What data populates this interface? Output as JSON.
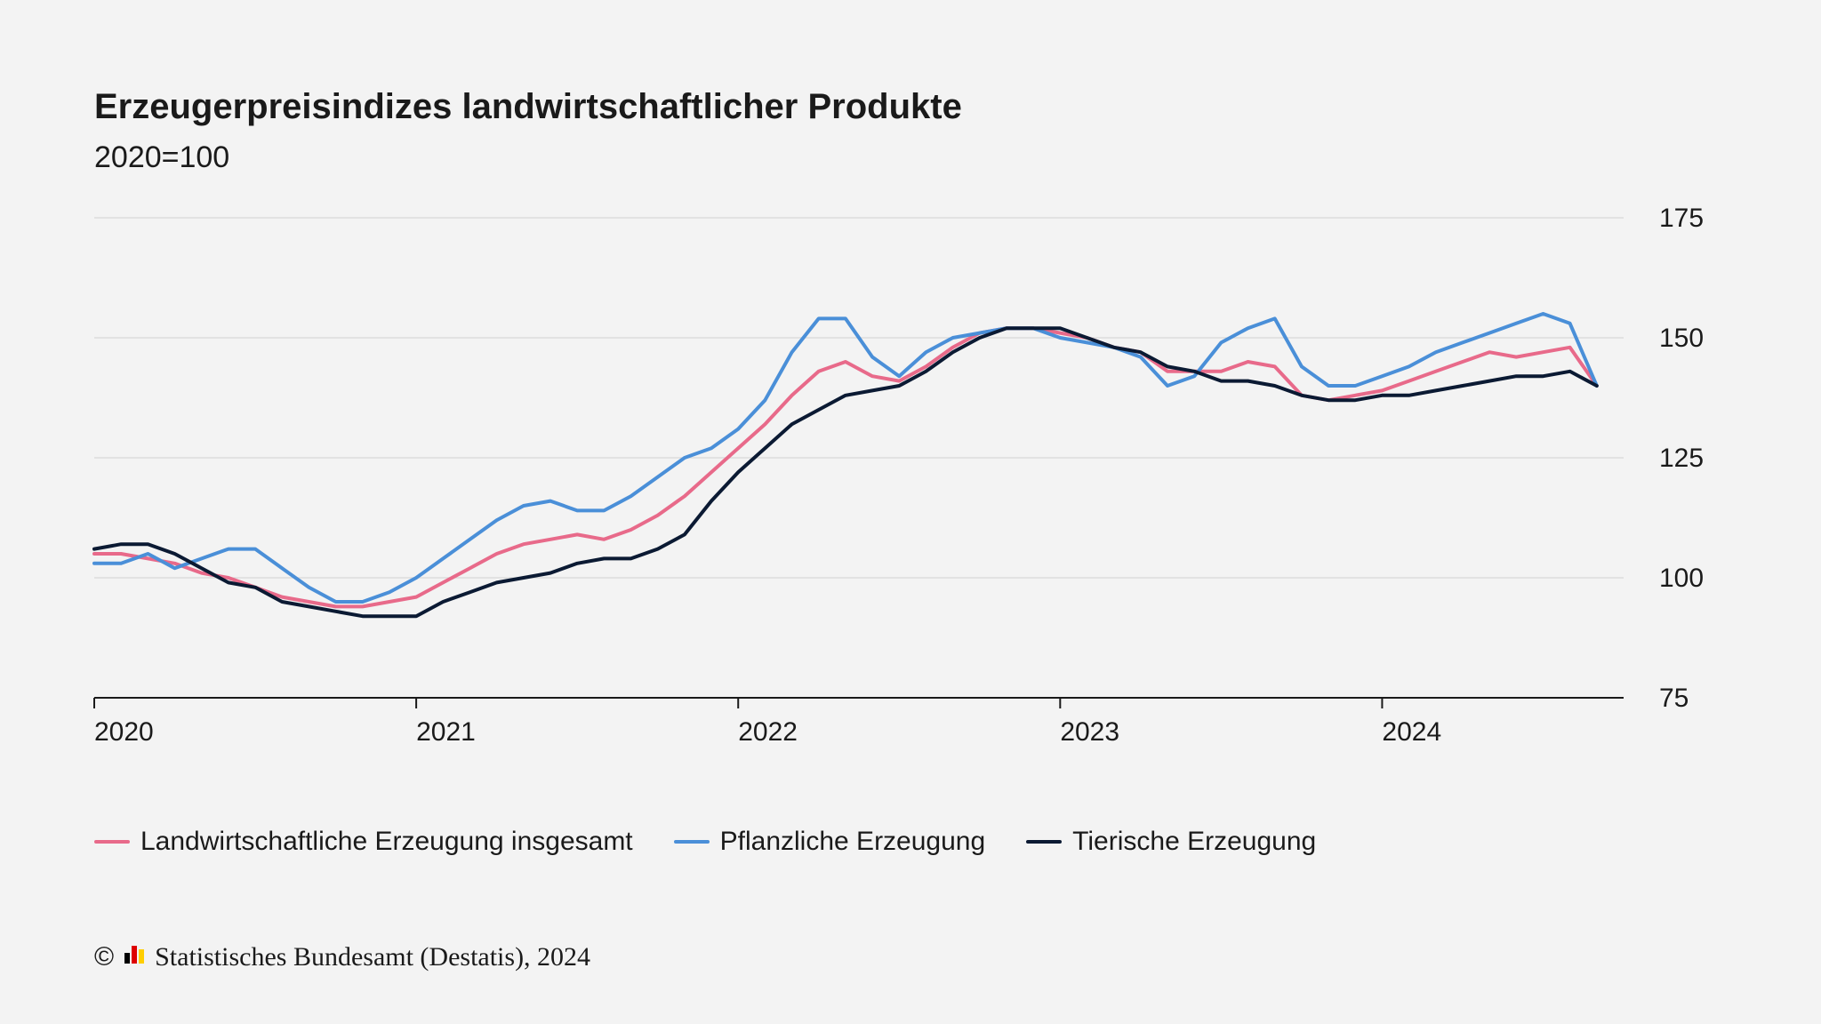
{
  "meta": {
    "title": "Erzeugerpreisindizes landwirtschaftlicher Produkte",
    "subtitle": "2020=100",
    "credit_text": "Statistisches Bundesamt (Destatis), 2024",
    "copyright_symbol": "©"
  },
  "chart": {
    "type": "line",
    "background_color": "#f3f3f3",
    "grid_color": "#d8d8d8",
    "axis_color": "#1a1a1a",
    "yaxis": {
      "min": 75,
      "max": 175,
      "ticks": [
        75,
        100,
        125,
        150,
        175
      ],
      "label_fontsize": 30,
      "tick_side": "right"
    },
    "xaxis": {
      "t_min": 0,
      "t_max": 57,
      "t_months_per_unit": 1,
      "year_ticks": [
        {
          "t": 0,
          "label": "2020"
        },
        {
          "t": 12,
          "label": "2021"
        },
        {
          "t": 24,
          "label": "2022"
        },
        {
          "t": 36,
          "label": "2023"
        },
        {
          "t": 48,
          "label": "2024"
        }
      ],
      "label_fontsize": 30
    },
    "line_width": 4,
    "series": [
      {
        "id": "gesamt",
        "name": "Landwirtschaftliche Erzeugung insgesamt",
        "color": "#e86a8a",
        "values": [
          105,
          105,
          104,
          103,
          101,
          100,
          98,
          96,
          95,
          94,
          94,
          95,
          96,
          99,
          102,
          105,
          107,
          108,
          109,
          108,
          110,
          113,
          117,
          122,
          127,
          132,
          138,
          143,
          145,
          142,
          141,
          144,
          148,
          151,
          152,
          152,
          151,
          150,
          148,
          147,
          143,
          143,
          143,
          145,
          144,
          138,
          137,
          138,
          139,
          141,
          143,
          145,
          147,
          146,
          147,
          148,
          140
        ]
      },
      {
        "id": "pflanzlich",
        "name": "Pflanzliche Erzeugung",
        "color": "#4a8fd8",
        "values": [
          103,
          103,
          105,
          102,
          104,
          106,
          106,
          102,
          98,
          95,
          95,
          97,
          100,
          104,
          108,
          112,
          115,
          116,
          114,
          114,
          117,
          121,
          125,
          127,
          131,
          137,
          147,
          154,
          154,
          146,
          142,
          147,
          150,
          151,
          152,
          152,
          150,
          149,
          148,
          146,
          140,
          142,
          149,
          152,
          154,
          144,
          140,
          140,
          142,
          144,
          147,
          149,
          151,
          153,
          155,
          153,
          140
        ]
      },
      {
        "id": "tierisch",
        "name": "Tierische Erzeugung",
        "color": "#0b1a33",
        "values": [
          106,
          107,
          107,
          105,
          102,
          99,
          98,
          95,
          94,
          93,
          92,
          92,
          92,
          95,
          97,
          99,
          100,
          101,
          103,
          104,
          104,
          106,
          109,
          116,
          122,
          127,
          132,
          135,
          138,
          139,
          140,
          143,
          147,
          150,
          152,
          152,
          152,
          150,
          148,
          147,
          144,
          143,
          141,
          141,
          140,
          138,
          137,
          137,
          138,
          138,
          139,
          140,
          141,
          142,
          142,
          143,
          140
        ]
      }
    ]
  },
  "legend": {
    "items": [
      {
        "label": "Landwirtschaftliche Erzeugung insgesamt",
        "color": "#e86a8a"
      },
      {
        "label": "Pflanzliche Erzeugung",
        "color": "#4a8fd8"
      },
      {
        "label": "Tierische Erzeugung",
        "color": "#0b1a33"
      }
    ]
  },
  "logo": {
    "stripes": [
      "#000000",
      "#dd0000",
      "#ffce00"
    ],
    "bar_order_heights": [
      12,
      20,
      16
    ]
  }
}
